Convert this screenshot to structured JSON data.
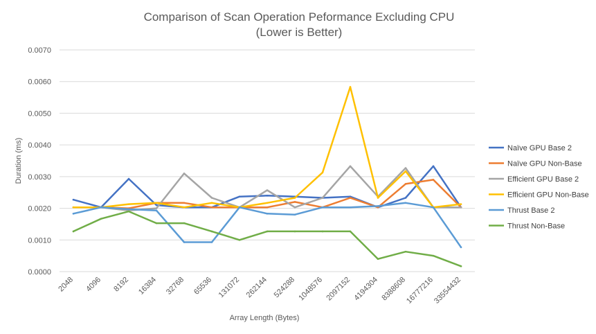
{
  "chart_data": {
    "type": "line",
    "title": "Comparison of Scan Operation Peformance Excluding CPU",
    "subtitle": "(Lower is Better)",
    "xlabel": "Array Length  (Bytes)",
    "ylabel": "Duration (ms)",
    "ylim": [
      0,
      0.007
    ],
    "yticks": [
      "0.0000",
      "0.0010",
      "0.0020",
      "0.0030",
      "0.0040",
      "0.0050",
      "0.0060",
      "0.0070"
    ],
    "grid": true,
    "legend_position": "right",
    "categories": [
      "2048",
      "4096",
      "8192",
      "16384",
      "32768",
      "65536",
      "131072",
      "262144",
      "524288",
      "1048576",
      "2097152",
      "4194304",
      "8388608",
      "16777216",
      "33554432"
    ],
    "series": [
      {
        "name": "Naïve GPU Base 2",
        "color": "#4472c4",
        "values": [
          0.00227,
          0.00203,
          0.00293,
          0.0021,
          0.00203,
          0.00203,
          0.00237,
          0.0024,
          0.00237,
          0.00233,
          0.00237,
          0.00203,
          0.00233,
          0.00333,
          0.00203
        ]
      },
      {
        "name": "Naïve GPU Non-Base",
        "color": "#ed7d31",
        "values": [
          0.00203,
          0.00203,
          0.002,
          0.00217,
          0.00217,
          0.00203,
          0.00203,
          0.00203,
          0.0022,
          0.00203,
          0.00233,
          0.00203,
          0.00277,
          0.0029,
          0.00203
        ]
      },
      {
        "name": "Efficient GPU Base 2",
        "color": "#a5a5a5",
        "values": [
          0.00203,
          0.00203,
          0.00193,
          0.002,
          0.0031,
          0.00233,
          0.00203,
          0.00257,
          0.00203,
          0.00233,
          0.00333,
          0.00237,
          0.00327,
          0.00203,
          0.00203
        ]
      },
      {
        "name": "Efficient GPU Non-Base",
        "color": "#ffc000",
        "values": [
          0.00203,
          0.00203,
          0.00213,
          0.00217,
          0.00203,
          0.00217,
          0.00203,
          0.00217,
          0.00233,
          0.00313,
          0.00583,
          0.00233,
          0.00317,
          0.00203,
          0.00213
        ]
      },
      {
        "name": "Thrust Base 2",
        "color": "#5b9bd5",
        "values": [
          0.00183,
          0.00203,
          0.00197,
          0.00193,
          0.00093,
          0.00093,
          0.00203,
          0.00183,
          0.0018,
          0.00203,
          0.00203,
          0.00207,
          0.00217,
          0.00203,
          0.00077
        ]
      },
      {
        "name": "Thrust Non-Base",
        "color": "#70ad47",
        "values": [
          0.00127,
          0.00167,
          0.0019,
          0.00153,
          0.00153,
          0.00127,
          0.001,
          0.00127,
          0.00127,
          0.00127,
          0.00127,
          0.0004,
          0.00063,
          0.0005,
          0.00017
        ]
      }
    ]
  }
}
